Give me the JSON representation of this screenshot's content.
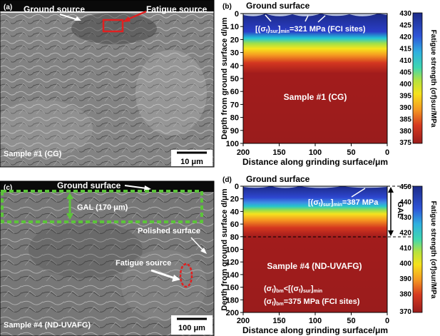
{
  "panels": {
    "a": {
      "label": "(a)",
      "ground_source": "Ground source",
      "fatigue_source": "Fatigue source",
      "sample": "Sample #1 (CG)",
      "scale_bar": "10 μm"
    },
    "b": {
      "label": "(b)",
      "ground_surface": "Ground surface",
      "annotation_main": "[(σ",
      "annotation_sub": "f",
      "annotation_post": ")",
      "annotation_sub2": "sur",
      "annotation_close": "]",
      "annotation_min": "min",
      "annotation_value": "=321 MPa (FCI sites)",
      "sample": "Sample #1 (CG)",
      "xlabel": "Distance along grinding surface/μm",
      "ylabel": "Depth from ground surface d/μm",
      "colorbar_label": "Fatigue strength (σf)sur/MPa",
      "x_ticks": [
        "200",
        "150",
        "100",
        "50",
        "0"
      ],
      "y_ticks": [
        "0",
        "10",
        "20",
        "30",
        "40",
        "50",
        "60",
        "70",
        "80",
        "90",
        "100"
      ],
      "colorbar_ticks": [
        "430",
        "425",
        "420",
        "415",
        "410",
        "405",
        "400",
        "395",
        "390",
        "385",
        "380",
        "375"
      ]
    },
    "c": {
      "label": "(c)",
      "ground_surface": "Ground surface",
      "gal": "GAL (170 μm)",
      "polished": "Polished surface",
      "fatigue_source": "Fatigue source",
      "sample": "Sample #4 (ND-UVAFG)",
      "scale_bar": "100 μm"
    },
    "d": {
      "label": "(d)",
      "ground_surface": "Ground surface",
      "annotation_value": "=387 MPa",
      "gal": "GAL",
      "sample": "Sample #4 (ND-UVAFG)",
      "bm_line1_pre": "(σ",
      "bm_line1_value": "<[(σ",
      "bm_line2_value": "=375 MPa (FCI sites)",
      "xlabel": "Distance along grinding surface/μm",
      "ylabel": "Depth from ground surface d/μm",
      "colorbar_label": "Fatigue strength (σf)sur/MPa",
      "x_ticks": [
        "200",
        "150",
        "100",
        "50",
        "0"
      ],
      "y_ticks": [
        "0",
        "20",
        "40",
        "60",
        "80",
        "100",
        "120",
        "140",
        "160",
        "180",
        "200"
      ],
      "colorbar_ticks": [
        "450",
        "440",
        "430",
        "420",
        "410",
        "400",
        "390",
        "380",
        "370"
      ]
    }
  },
  "colors": {
    "dark_red": "#9c1c1c",
    "navy": "#1b2a8a",
    "gal_dash": "#5cc43a",
    "fatigue_box": "#e02020"
  }
}
